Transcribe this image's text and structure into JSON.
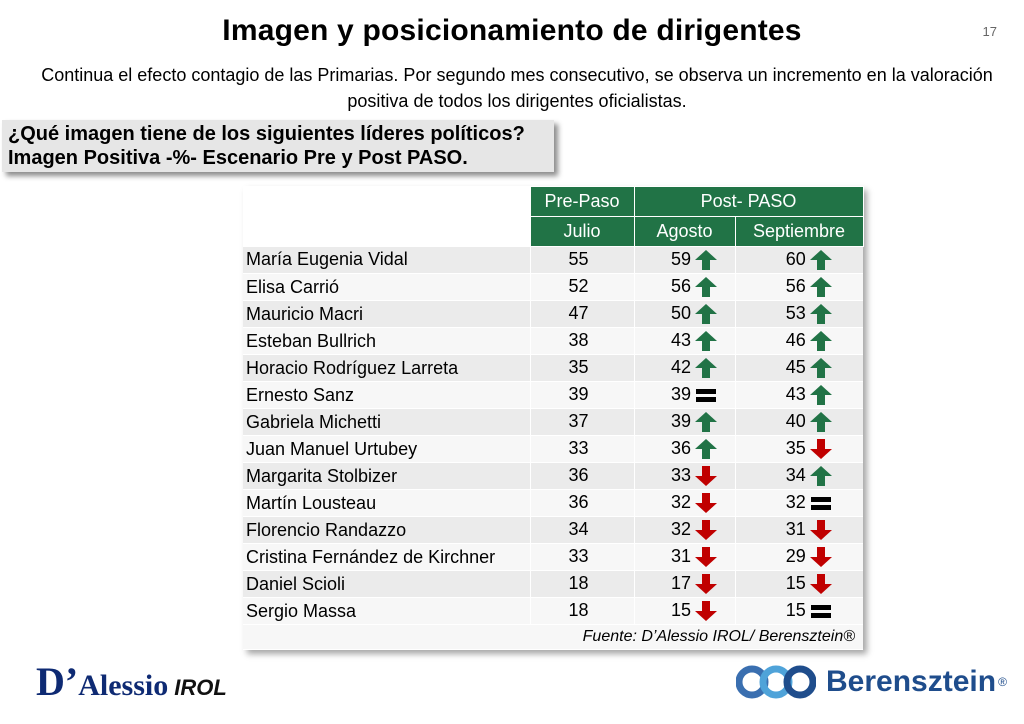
{
  "page": {
    "title": "Imagen y posicionamiento de dirigentes",
    "number": "17",
    "subtitle": "Continua el efecto contagio de las Primarias. Por segundo mes consecutivo, se observa un incremento en la valoración positiva de todos los dirigentes oficialistas."
  },
  "question": {
    "line1": "¿Qué imagen tiene de los siguientes líderes políticos?",
    "line2": "Imagen Positiva -%- Escenario Pre y Post PASO."
  },
  "table": {
    "group_headers": [
      "Pre-Paso",
      "Post- PASO"
    ],
    "columns": [
      "Julio",
      "Agosto",
      "Septiembre"
    ],
    "rows": [
      {
        "name": "María Eugenia Vidal",
        "julio": "55",
        "agosto": "59",
        "agosto_trend": "up",
        "sep": "60",
        "sep_trend": "up"
      },
      {
        "name": "Elisa Carrió",
        "julio": "52",
        "agosto": "56",
        "agosto_trend": "up",
        "sep": "56",
        "sep_trend": "up"
      },
      {
        "name": "Mauricio Macri",
        "julio": "47",
        "agosto": "50",
        "agosto_trend": "up",
        "sep": "53",
        "sep_trend": "up"
      },
      {
        "name": "Esteban Bullrich",
        "julio": "38",
        "agosto": "43",
        "agosto_trend": "up",
        "sep": "46",
        "sep_trend": "up"
      },
      {
        "name": "Horacio Rodríguez Larreta",
        "julio": "35",
        "agosto": "42",
        "agosto_trend": "up",
        "sep": "45",
        "sep_trend": "up"
      },
      {
        "name": "Ernesto Sanz",
        "julio": "39",
        "agosto": "39",
        "agosto_trend": "equal",
        "sep": "43",
        "sep_trend": "up"
      },
      {
        "name": "Gabriela Michetti",
        "julio": "37",
        "agosto": "39",
        "agosto_trend": "up",
        "sep": "40",
        "sep_trend": "up"
      },
      {
        "name": "Juan Manuel Urtubey",
        "julio": "33",
        "agosto": "36",
        "agosto_trend": "up",
        "sep": "35",
        "sep_trend": "down"
      },
      {
        "name": "Margarita Stolbizer",
        "julio": "36",
        "agosto": "33",
        "agosto_trend": "down",
        "sep": "34",
        "sep_trend": "up"
      },
      {
        "name": "Martín Lousteau",
        "julio": "36",
        "agosto": "32",
        "agosto_trend": "down",
        "sep": "32",
        "sep_trend": "equal"
      },
      {
        "name": "Florencio Randazzo",
        "julio": "34",
        "agosto": "32",
        "agosto_trend": "down",
        "sep": "31",
        "sep_trend": "down"
      },
      {
        "name": "Cristina Fernández de Kirchner",
        "julio": "33",
        "agosto": "31",
        "agosto_trend": "down",
        "sep": "29",
        "sep_trend": "down"
      },
      {
        "name": "Daniel Scioli",
        "julio": "18",
        "agosto": "17",
        "agosto_trend": "down",
        "sep": "15",
        "sep_trend": "down"
      },
      {
        "name": "Sergio Massa",
        "julio": "18",
        "agosto": "15",
        "agosto_trend": "down",
        "sep": "15",
        "sep_trend": "equal"
      }
    ],
    "source": "Fuente: D’Alessio IROL/ Berensztein®"
  },
  "colors": {
    "header_green": "#217346",
    "up": "#217346",
    "down": "#c00000",
    "equal": "#000000"
  },
  "logos": {
    "left_big": "D’",
    "left_rest": "Alessio",
    "left_suffix": "IROL",
    "right_word": "Berensztein",
    "right_reg": "®"
  }
}
